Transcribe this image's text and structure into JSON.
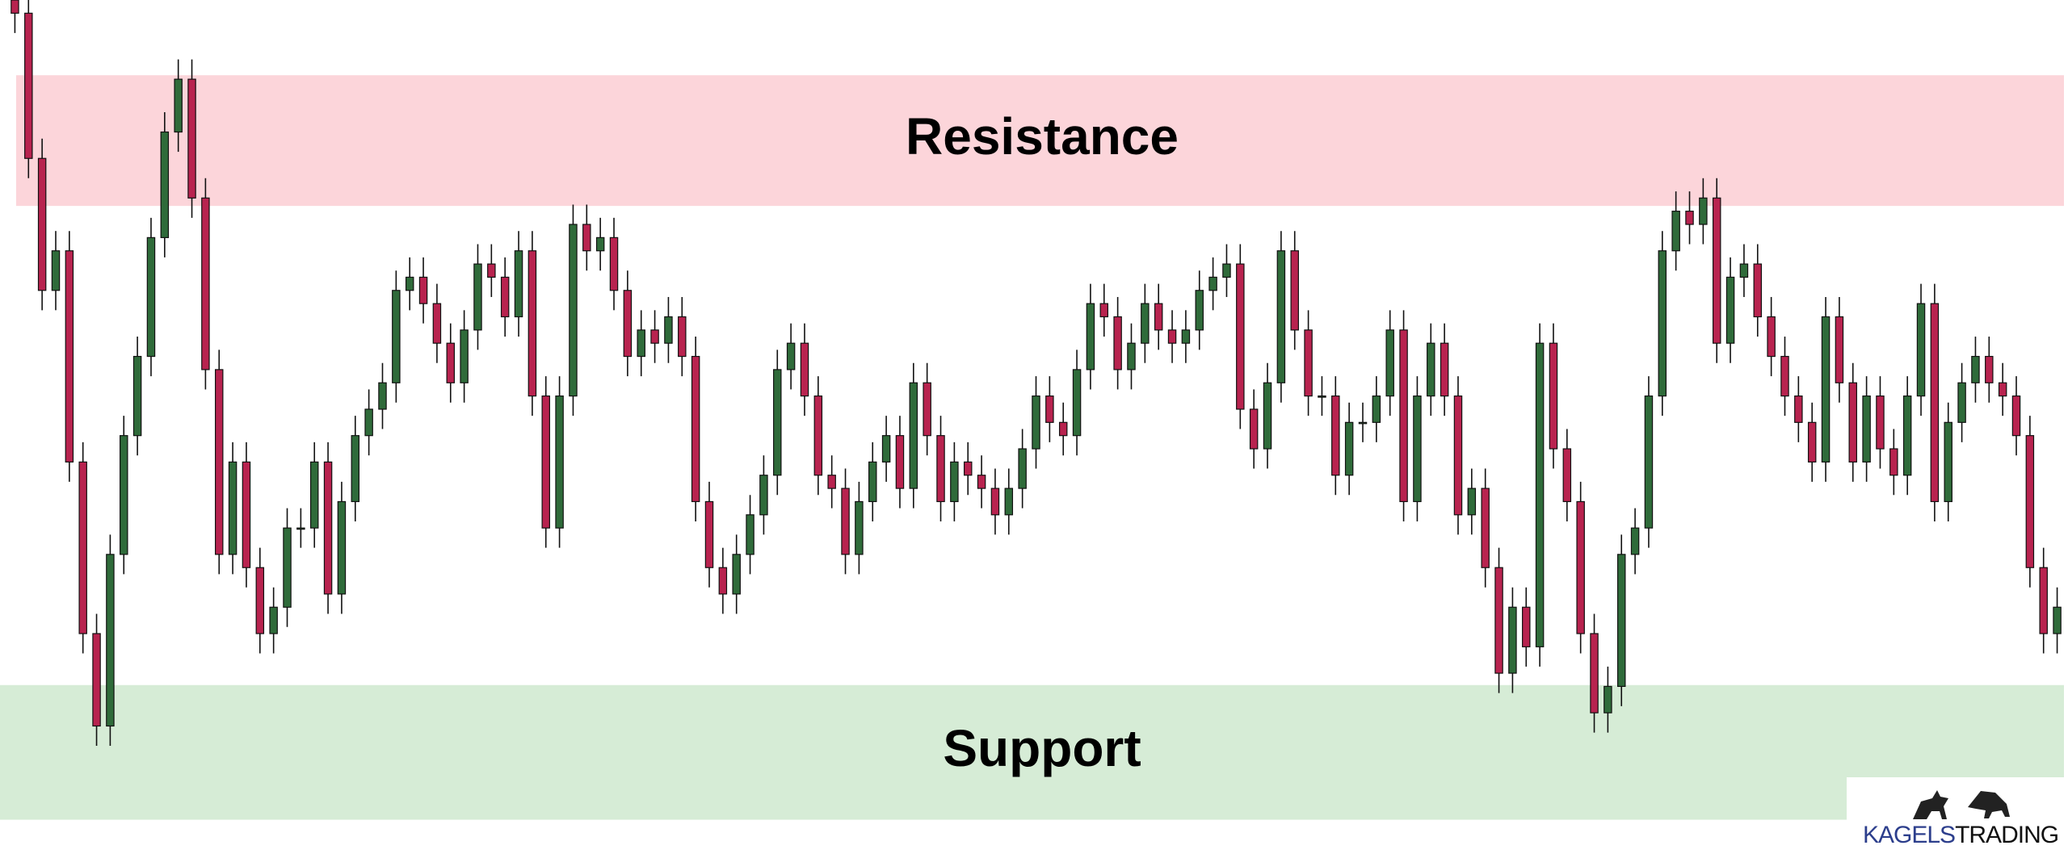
{
  "chart_data": {
    "type": "candlestick",
    "zones": [
      {
        "label": "Resistance",
        "range": [
          494,
          593
        ],
        "color": "#fcd5da"
      },
      {
        "label": "Support",
        "range": [
          29,
          131
        ],
        "color": "#d6ecd6"
      }
    ],
    "up_color": "#2f6b3a",
    "down_color": "#b8234f",
    "ylim": [
      0,
      650
    ],
    "open": [
      650,
      640,
      530,
      430,
      460,
      300,
      170,
      100,
      230,
      320,
      380,
      470,
      550,
      590,
      500,
      370,
      230,
      300,
      220,
      170,
      190,
      250,
      250,
      300,
      200,
      270,
      320,
      340,
      360,
      430,
      440,
      420,
      390,
      360,
      400,
      450,
      440,
      410,
      460,
      350,
      250,
      350,
      480,
      460,
      470,
      430,
      380,
      400,
      390,
      410,
      380,
      270,
      220,
      200,
      230,
      260,
      290,
      370,
      390,
      350,
      290,
      280,
      230,
      270,
      300,
      320,
      280,
      360,
      320,
      270,
      300,
      290,
      280,
      260,
      280,
      310,
      350,
      330,
      320,
      370,
      420,
      410,
      370,
      390,
      420,
      400,
      390,
      400,
      430,
      440,
      450,
      340,
      310,
      360,
      460,
      400,
      350,
      350,
      290,
      330,
      330,
      350,
      400,
      270,
      350,
      390,
      350,
      260,
      280,
      220,
      140,
      190,
      160,
      390,
      310,
      270,
      170,
      110,
      130,
      230,
      250,
      350,
      460,
      490,
      480,
      500,
      390,
      440,
      450,
      410,
      380,
      350,
      330,
      300,
      410,
      360,
      300,
      350,
      310,
      290,
      350,
      420,
      270,
      330,
      360,
      380,
      360,
      350,
      320,
      220,
      170
    ],
    "high": [
      650,
      655,
      545,
      475,
      475,
      315,
      185,
      245,
      335,
      395,
      485,
      565,
      605,
      605,
      515,
      385,
      315,
      315,
      235,
      205,
      265,
      265,
      315,
      315,
      285,
      335,
      355,
      375,
      445,
      455,
      455,
      435,
      405,
      415,
      465,
      465,
      455,
      475,
      475,
      365,
      365,
      495,
      495,
      485,
      485,
      445,
      415,
      415,
      425,
      425,
      395,
      285,
      235,
      245,
      275,
      305,
      385,
      405,
      405,
      365,
      305,
      295,
      285,
      315,
      335,
      335,
      375,
      375,
      335,
      315,
      315,
      305,
      295,
      295,
      325,
      365,
      365,
      345,
      385,
      435,
      435,
      425,
      405,
      435,
      435,
      415,
      415,
      445,
      455,
      465,
      465,
      355,
      375,
      475,
      475,
      415,
      365,
      365,
      345,
      345,
      365,
      415,
      415,
      365,
      405,
      405,
      365,
      295,
      295,
      235,
      205,
      205,
      405,
      405,
      325,
      285,
      185,
      145,
      245,
      265,
      365,
      475,
      505,
      505,
      515,
      515,
      455,
      465,
      465,
      425,
      395,
      365,
      345,
      425,
      425,
      375,
      365,
      365,
      325,
      365,
      435,
      435,
      345,
      375,
      395,
      395,
      375,
      365,
      335,
      235,
      205
    ],
    "low": [
      625,
      515,
      415,
      415,
      285,
      155,
      85,
      85,
      215,
      305,
      365,
      455,
      535,
      485,
      355,
      215,
      215,
      205,
      155,
      155,
      175,
      235,
      235,
      185,
      185,
      255,
      305,
      325,
      345,
      415,
      405,
      375,
      345,
      345,
      385,
      425,
      395,
      395,
      335,
      235,
      235,
      335,
      445,
      445,
      415,
      365,
      365,
      375,
      375,
      365,
      255,
      205,
      185,
      185,
      215,
      245,
      275,
      355,
      335,
      275,
      265,
      215,
      215,
      255,
      285,
      265,
      265,
      305,
      255,
      255,
      275,
      265,
      245,
      245,
      265,
      295,
      315,
      305,
      305,
      355,
      395,
      355,
      355,
      375,
      385,
      375,
      375,
      385,
      415,
      425,
      325,
      295,
      295,
      345,
      385,
      335,
      335,
      275,
      275,
      315,
      315,
      335,
      255,
      255,
      335,
      335,
      245,
      245,
      205,
      125,
      125,
      145,
      145,
      295,
      255,
      155,
      95,
      95,
      115,
      215,
      235,
      335,
      445,
      465,
      465,
      375,
      375,
      425,
      395,
      365,
      335,
      315,
      285,
      285,
      345,
      285,
      285,
      295,
      275,
      275,
      335,
      255,
      255,
      315,
      345,
      345,
      335,
      305,
      205,
      155,
      155
    ],
    "close": [
      640,
      530,
      430,
      460,
      300,
      170,
      100,
      230,
      320,
      380,
      470,
      550,
      590,
      500,
      370,
      230,
      300,
      220,
      170,
      190,
      250,
      250,
      300,
      200,
      270,
      320,
      340,
      360,
      430,
      440,
      420,
      390,
      360,
      400,
      450,
      440,
      410,
      460,
      350,
      250,
      350,
      480,
      460,
      470,
      430,
      380,
      400,
      390,
      410,
      380,
      270,
      220,
      200,
      230,
      260,
      290,
      370,
      390,
      350,
      290,
      280,
      230,
      270,
      300,
      320,
      280,
      360,
      320,
      270,
      300,
      290,
      280,
      260,
      280,
      310,
      350,
      330,
      320,
      370,
      420,
      410,
      370,
      390,
      420,
      400,
      390,
      400,
      430,
      440,
      450,
      340,
      310,
      360,
      460,
      400,
      350,
      350,
      290,
      330,
      330,
      350,
      400,
      270,
      350,
      390,
      350,
      260,
      280,
      220,
      140,
      190,
      160,
      390,
      310,
      270,
      170,
      110,
      130,
      230,
      250,
      350,
      460,
      490,
      480,
      500,
      390,
      440,
      450,
      410,
      380,
      350,
      330,
      300,
      410,
      360,
      300,
      350,
      310,
      290,
      350,
      420,
      270,
      330,
      360,
      380,
      360,
      350,
      320,
      220,
      170,
      190
    ]
  },
  "logo": {
    "part1": "KAGELS",
    "part2": "TRADING"
  }
}
